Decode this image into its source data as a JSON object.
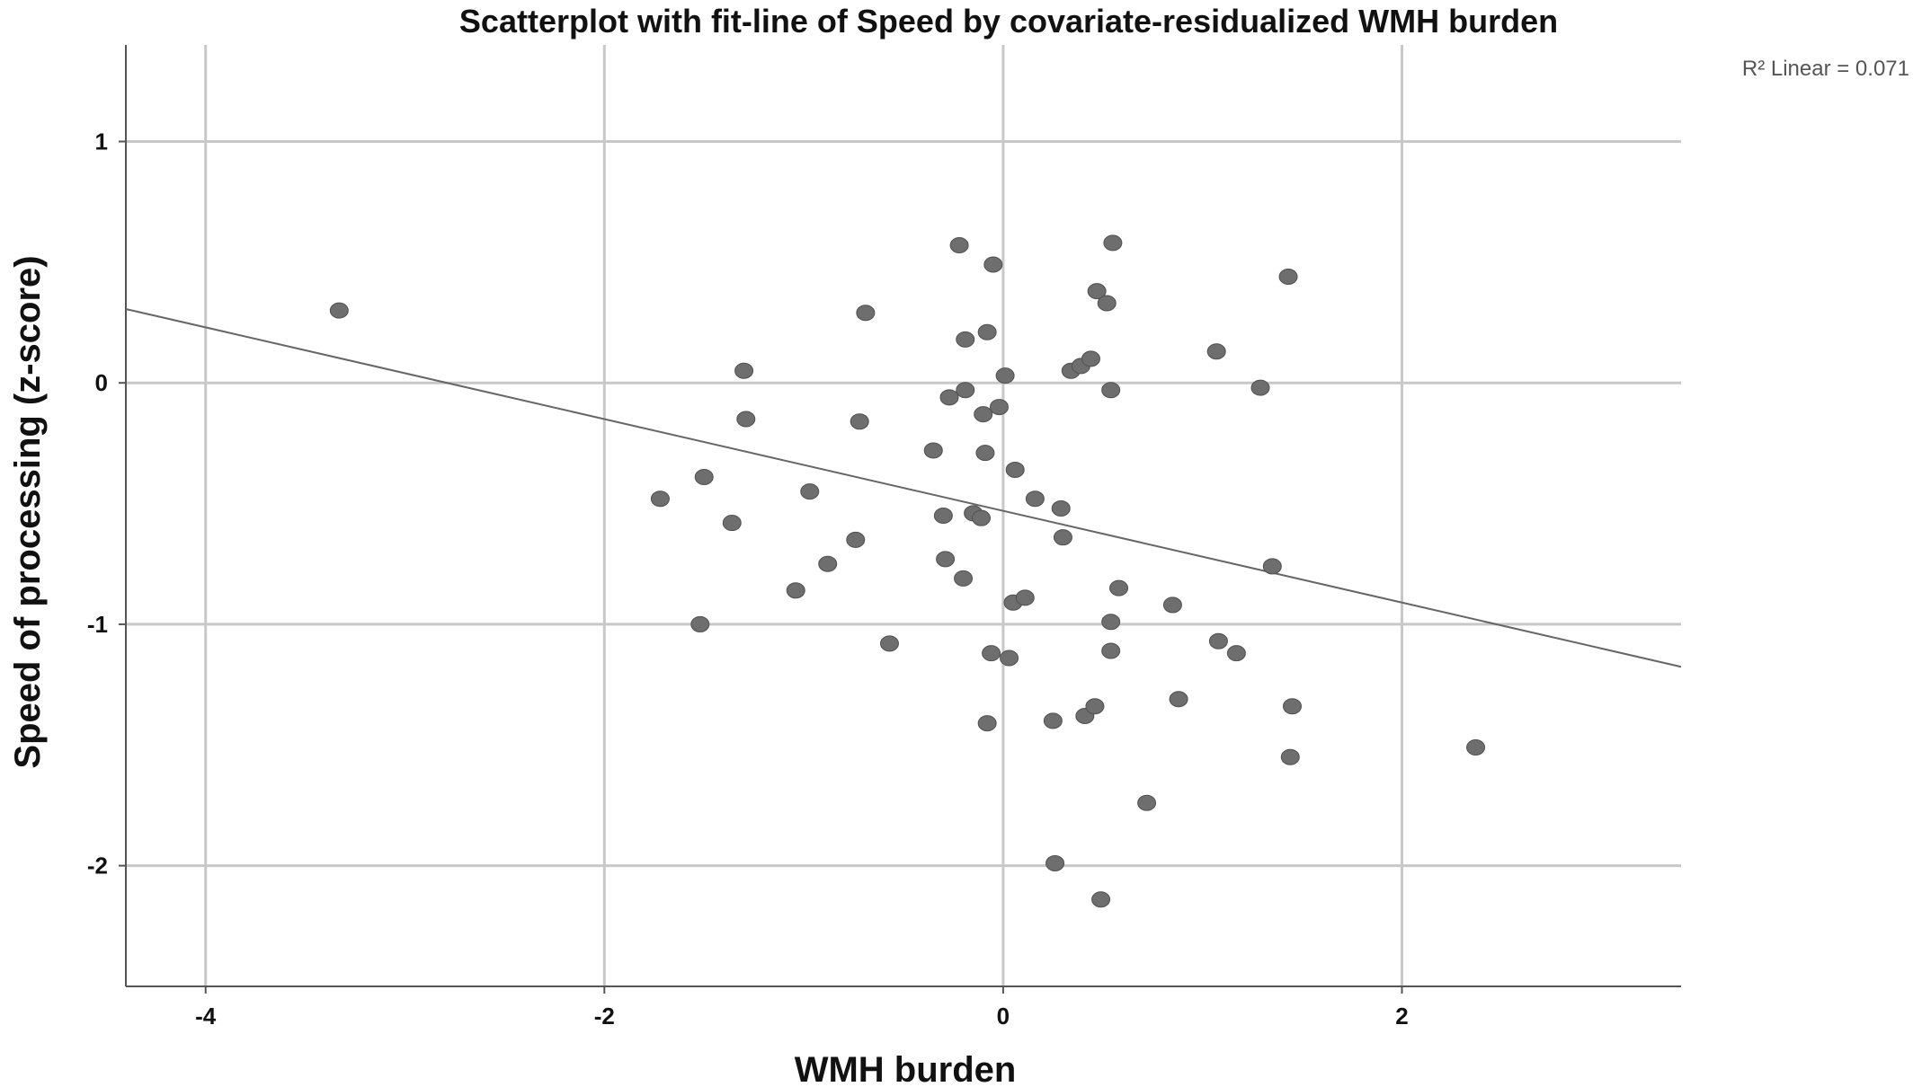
{
  "chart_data": {
    "type": "scatter",
    "title": "Scatterplot with fit-line of Speed by covariate-residualized WMH burden",
    "xlabel": "WMH burden",
    "ylabel": "Speed of processing (z-score)",
    "xlim": [
      -4.4,
      3.4
    ],
    "ylim": [
      -2.5,
      1.4
    ],
    "xticks": [
      -4,
      -2,
      0,
      2
    ],
    "yticks": [
      1,
      0,
      -1,
      -2
    ],
    "xtick_labels": [
      "-4",
      "-2",
      "0",
      "2"
    ],
    "ytick_labels": [
      "1",
      "0",
      "-1",
      "-2"
    ],
    "grid": true,
    "annotation": "R² Linear = 0.071",
    "fit_line": {
      "intercept": -0.53,
      "slope": -0.19
    },
    "colors": {
      "points": "#6e6e6e",
      "fit_line": "#666666",
      "grid": "#c8c8c8"
    },
    "points": [
      {
        "x": -3.33,
        "y": 0.3
      },
      {
        "x": -1.72,
        "y": -0.48
      },
      {
        "x": -1.5,
        "y": -0.39
      },
      {
        "x": -1.52,
        "y": -1.0
      },
      {
        "x": -1.36,
        "y": -0.58
      },
      {
        "x": -1.3,
        "y": 0.05
      },
      {
        "x": -1.29,
        "y": -0.15
      },
      {
        "x": -1.04,
        "y": -0.86
      },
      {
        "x": -0.97,
        "y": -0.45
      },
      {
        "x": -0.88,
        "y": -0.75
      },
      {
        "x": -0.74,
        "y": -0.65
      },
      {
        "x": -0.72,
        "y": -0.16
      },
      {
        "x": -0.69,
        "y": 0.29
      },
      {
        "x": -0.57,
        "y": -1.08
      },
      {
        "x": -0.35,
        "y": -0.28
      },
      {
        "x": -0.3,
        "y": -0.55
      },
      {
        "x": -0.29,
        "y": -0.73
      },
      {
        "x": -0.27,
        "y": -0.06
      },
      {
        "x": -0.22,
        "y": 0.57
      },
      {
        "x": -0.2,
        "y": -0.81
      },
      {
        "x": -0.19,
        "y": 0.18
      },
      {
        "x": -0.19,
        "y": -0.03
      },
      {
        "x": -0.15,
        "y": -0.54
      },
      {
        "x": -0.11,
        "y": -0.56
      },
      {
        "x": -0.1,
        "y": -0.13
      },
      {
        "x": -0.09,
        "y": -0.29
      },
      {
        "x": -0.08,
        "y": 0.21
      },
      {
        "x": -0.08,
        "y": -1.41
      },
      {
        "x": -0.06,
        "y": -1.12
      },
      {
        "x": -0.05,
        "y": 0.49
      },
      {
        "x": -0.02,
        "y": -0.1
      },
      {
        "x": 0.01,
        "y": 0.03
      },
      {
        "x": 0.03,
        "y": -1.14
      },
      {
        "x": 0.05,
        "y": -0.91
      },
      {
        "x": 0.06,
        "y": -0.36
      },
      {
        "x": 0.11,
        "y": -0.89
      },
      {
        "x": 0.16,
        "y": -0.48
      },
      {
        "x": 0.25,
        "y": -1.4
      },
      {
        "x": 0.26,
        "y": -1.99
      },
      {
        "x": 0.29,
        "y": -0.52
      },
      {
        "x": 0.3,
        "y": -0.64
      },
      {
        "x": 0.34,
        "y": 0.05
      },
      {
        "x": 0.39,
        "y": 0.07
      },
      {
        "x": 0.41,
        "y": -1.38
      },
      {
        "x": 0.44,
        "y": 0.1
      },
      {
        "x": 0.46,
        "y": -1.34
      },
      {
        "x": 0.47,
        "y": 0.38
      },
      {
        "x": 0.49,
        "y": -2.14
      },
      {
        "x": 0.52,
        "y": 0.33
      },
      {
        "x": 0.54,
        "y": -0.03
      },
      {
        "x": 0.54,
        "y": -0.99
      },
      {
        "x": 0.54,
        "y": -1.11
      },
      {
        "x": 0.55,
        "y": 0.58
      },
      {
        "x": 0.58,
        "y": -0.85
      },
      {
        "x": 0.72,
        "y": -1.74
      },
      {
        "x": 0.85,
        "y": -0.92
      },
      {
        "x": 0.88,
        "y": -1.31
      },
      {
        "x": 1.07,
        "y": 0.13
      },
      {
        "x": 1.08,
        "y": -1.07
      },
      {
        "x": 1.17,
        "y": -1.12
      },
      {
        "x": 1.29,
        "y": -0.02
      },
      {
        "x": 1.35,
        "y": -0.76
      },
      {
        "x": 1.43,
        "y": 0.44
      },
      {
        "x": 1.44,
        "y": -1.55
      },
      {
        "x": 1.45,
        "y": -1.34
      },
      {
        "x": 2.37,
        "y": -1.51
      }
    ]
  }
}
